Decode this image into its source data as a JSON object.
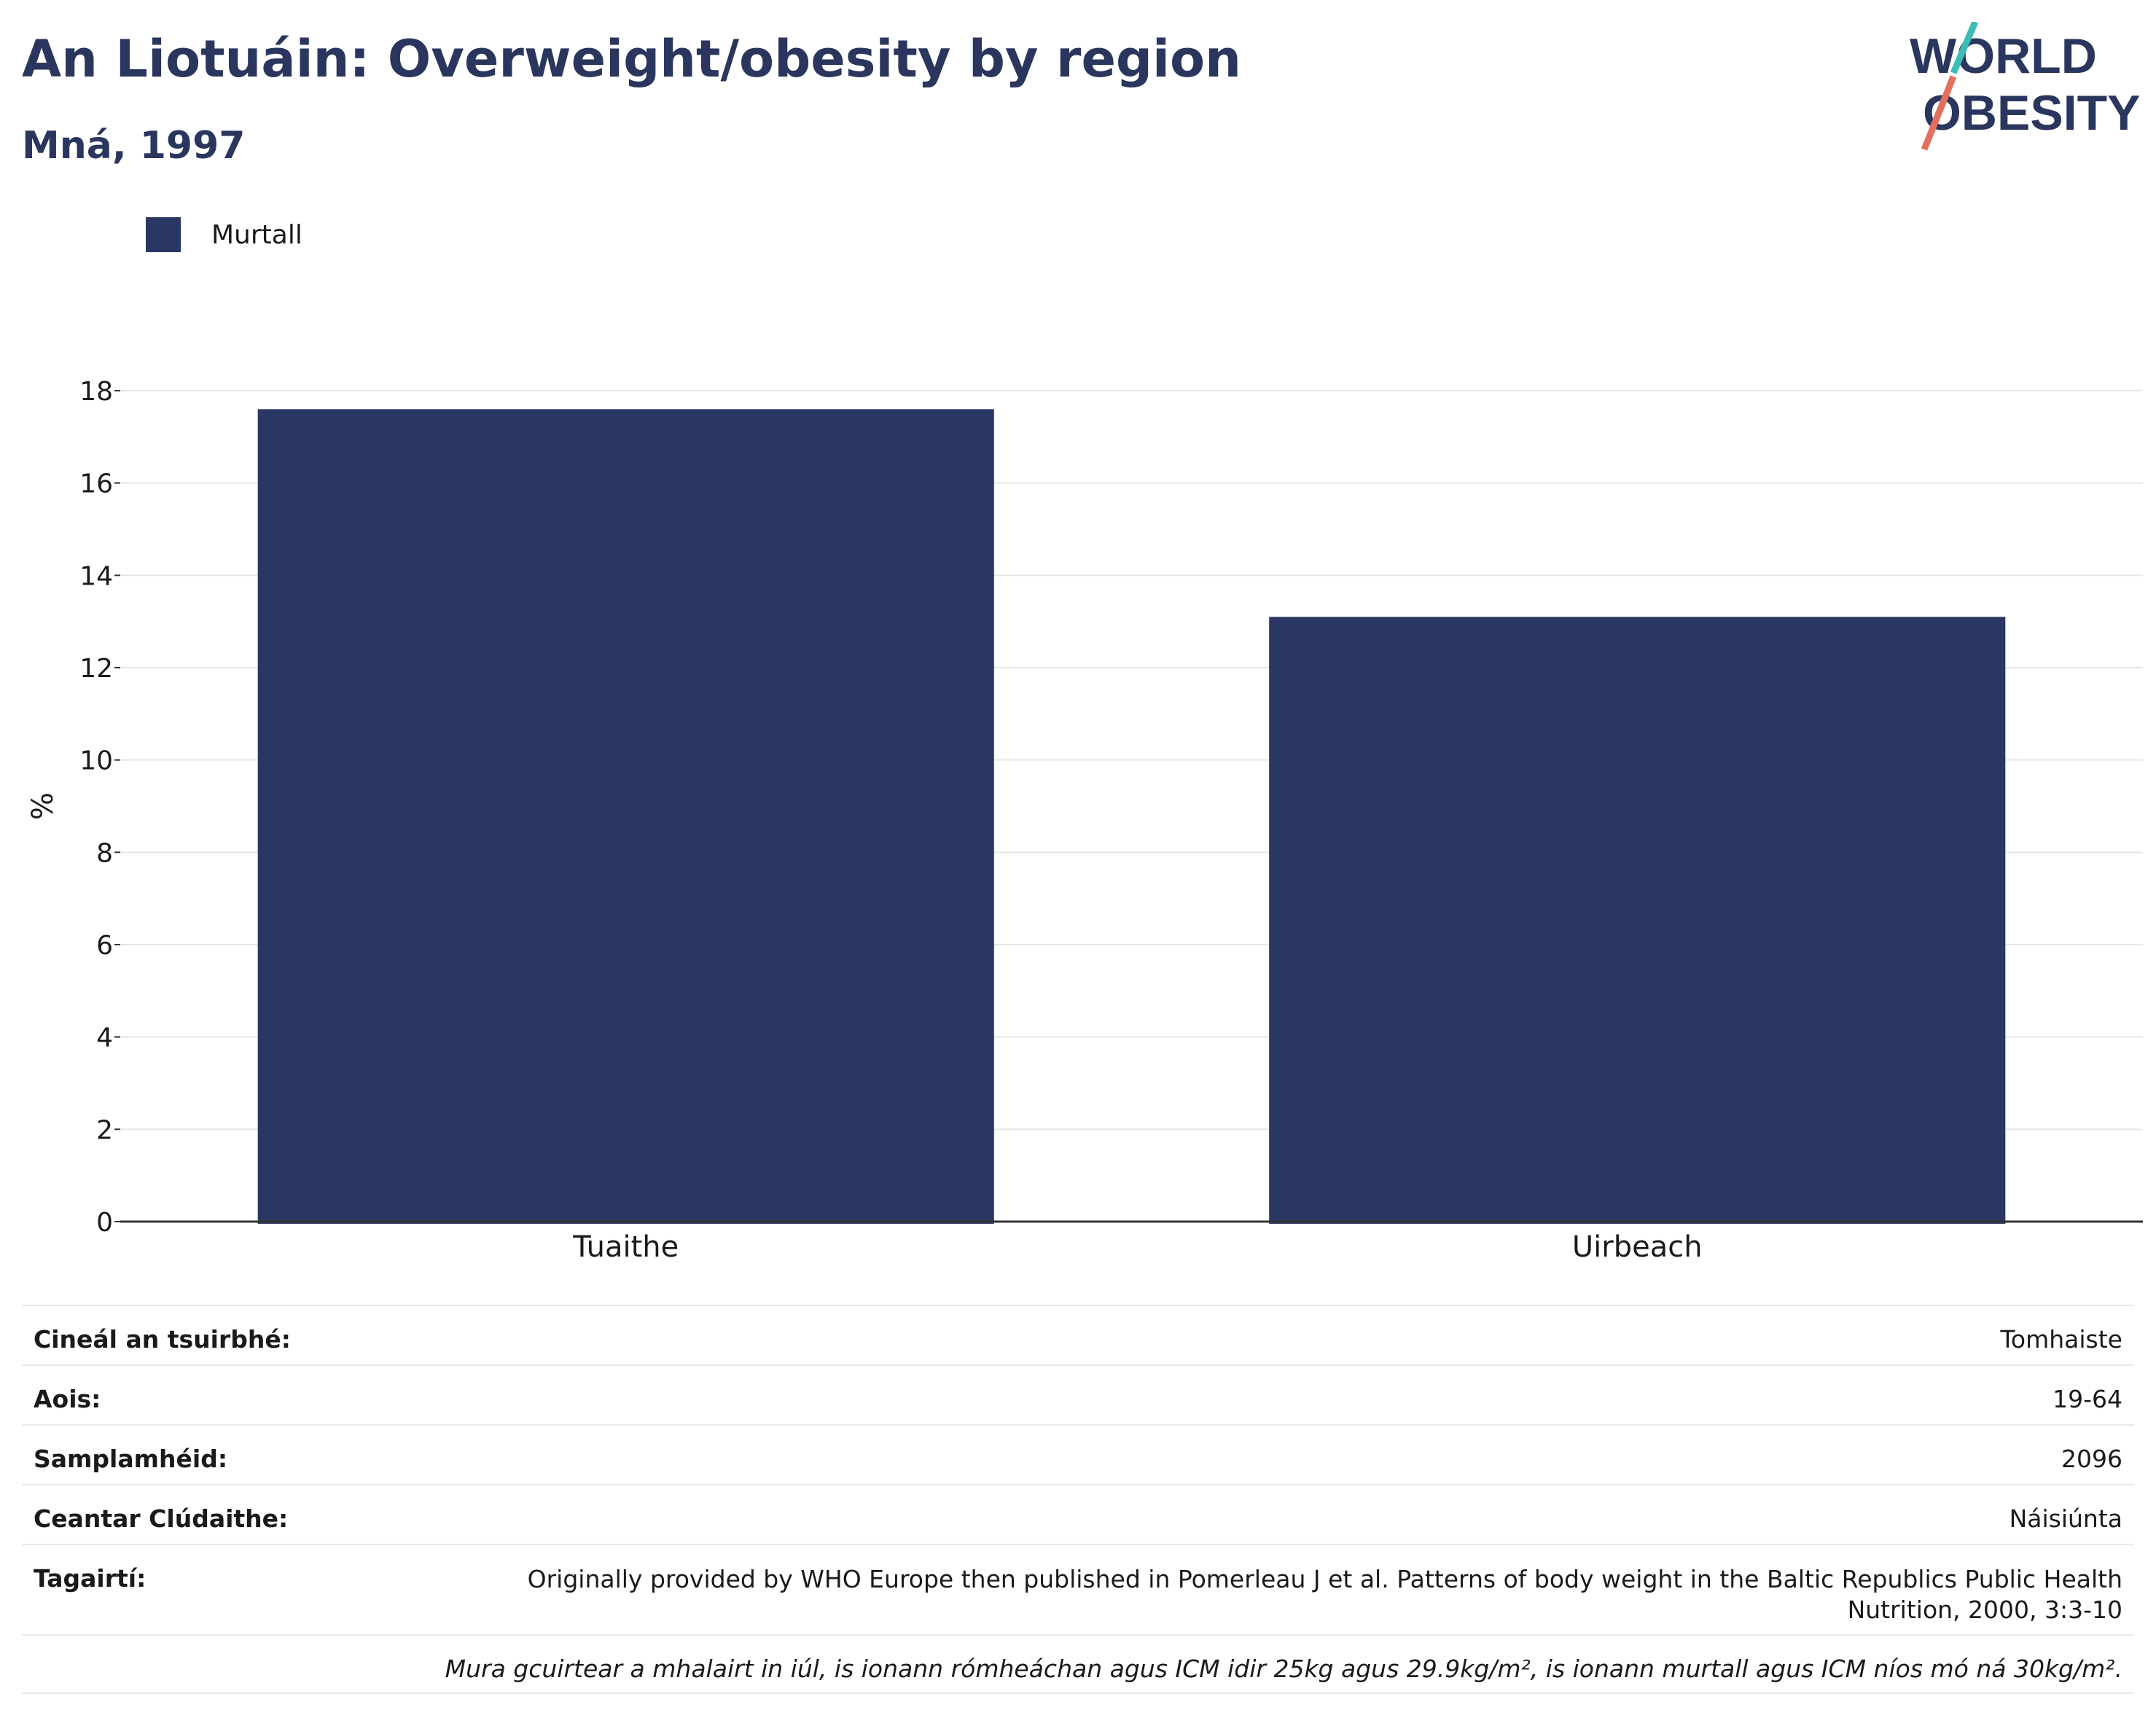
{
  "header": {
    "title": "An Liotuáin: Overweight/obesity by region",
    "subtitle": "Mná, 1997"
  },
  "logo": {
    "line1": "WORLD",
    "line2": "OBESITY"
  },
  "legend": {
    "label": "Murtall",
    "color": "#2b3763"
  },
  "colors": {
    "bar": "#2b3763",
    "title": "#2b365e",
    "grid": "#e6e6e6",
    "axis": "#333333"
  },
  "chart_data": {
    "type": "bar",
    "title": "An Liotuáin: Overweight/obesity by region",
    "subtitle": "Mná, 1997",
    "categories": [
      "Tuaithe",
      "Uirbeach"
    ],
    "series": [
      {
        "name": "Murtall",
        "values": [
          17.6,
          13.1
        ]
      }
    ],
    "xlabel": "",
    "ylabel": "%",
    "ylim": [
      0,
      18
    ],
    "yticks": [
      0,
      2,
      4,
      6,
      8,
      10,
      12,
      14,
      16,
      18
    ],
    "grid": true,
    "legend": "top-left"
  },
  "meta": {
    "survey_type_label": "Cineál an tsuirbhé:",
    "survey_type_value": "Tomhaiste",
    "age_label": "Aois:",
    "age_value": "19-64",
    "sample_label": "Samplamhéid:",
    "sample_value": "2096",
    "area_label": "Ceantar Clúdaithe:",
    "area_value": "Náisiúnta",
    "ref_label": "Tagairtí:",
    "ref_value": "Originally provided by WHO Europe then published in Pomerleau J et al. Patterns of body weight in the Baltic Republics Public Health Nutrition, 2000, 3:3-10",
    "note": "Mura gcuirtear a mhalairt in iúl, is ionann rómheáchan agus ICM idir 25kg agus 29.9kg/m², is ionann murtall agus ICM níos mó ná 30kg/m²."
  }
}
